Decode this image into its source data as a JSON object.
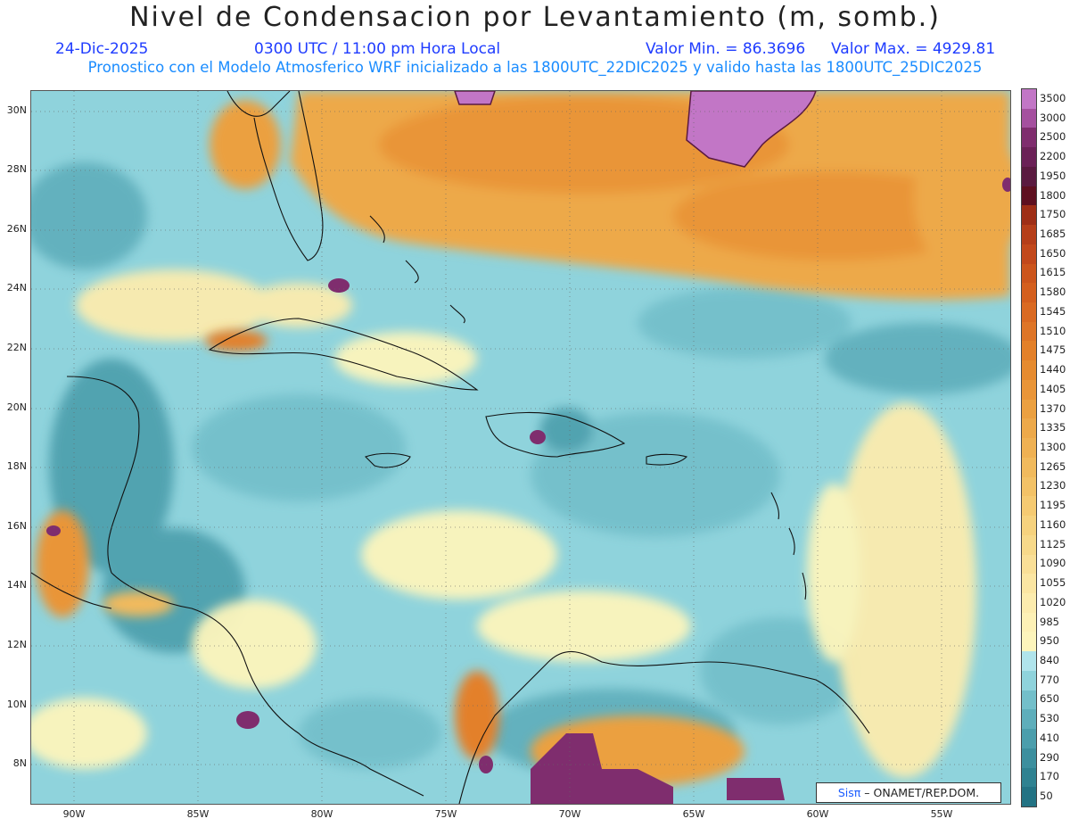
{
  "header": {
    "title": "Nivel de Condensacion por Levantamiento (m, somb.)",
    "date": "24-Dic-2025",
    "time": "0300 UTC / 11:00 pm Hora Local",
    "min_value": "Valor Min. = 86.3696",
    "max_value": "Valor Max. = 4929.81",
    "subtitle": "Pronostico con el Modelo Atmosferico WRF inicializado a las 1800UTC_22DIC2025 y valido hasta las  1800UTC_25DIC2025"
  },
  "axes": {
    "lat_labels": [
      "30N",
      "28N",
      "26N",
      "24N",
      "22N",
      "20N",
      "18N",
      "16N",
      "14N",
      "12N",
      "10N",
      "8N"
    ],
    "lon_labels": [
      "90W",
      "85W",
      "80W",
      "75W",
      "70W",
      "65W",
      "60W",
      "55W"
    ]
  },
  "colorbar": {
    "labels": [
      "3500",
      "3000",
      "2500",
      "2200",
      "1950",
      "1800",
      "1750",
      "1685",
      "1650",
      "1615",
      "1580",
      "1545",
      "1510",
      "1475",
      "1440",
      "1405",
      "1370",
      "1335",
      "1300",
      "1265",
      "1230",
      "1195",
      "1160",
      "1125",
      "1090",
      "1055",
      "1020",
      "985",
      "950",
      "840",
      "770",
      "650",
      "530",
      "410",
      "290",
      "170",
      "50"
    ],
    "colors": [
      "#c276c6",
      "#a5509f",
      "#7f2d6e",
      "#6b2157",
      "#5a1a40",
      "#5e1020",
      "#9e2e16",
      "#b53e19",
      "#c2481b",
      "#cc551c",
      "#d45f1e",
      "#da6a22",
      "#de7527",
      "#e38029",
      "#e68b2f",
      "#e99538",
      "#eba040",
      "#eda94a",
      "#efb153",
      "#f1ba5d",
      "#f3c267",
      "#f5ca72",
      "#f6d27e",
      "#f7d98a",
      "#f9df97",
      "#fbe6a3",
      "#fcecae",
      "#fdf1b6",
      "#fdf5bc",
      "#b0e4ec",
      "#8fd3dc",
      "#73bfca",
      "#5eaebb",
      "#4b9eac",
      "#3c8f9e",
      "#2f8291",
      "#237384"
    ]
  },
  "credit": {
    "brand": "Sisπ",
    "org": "– ONAMET/REP.DOM."
  }
}
